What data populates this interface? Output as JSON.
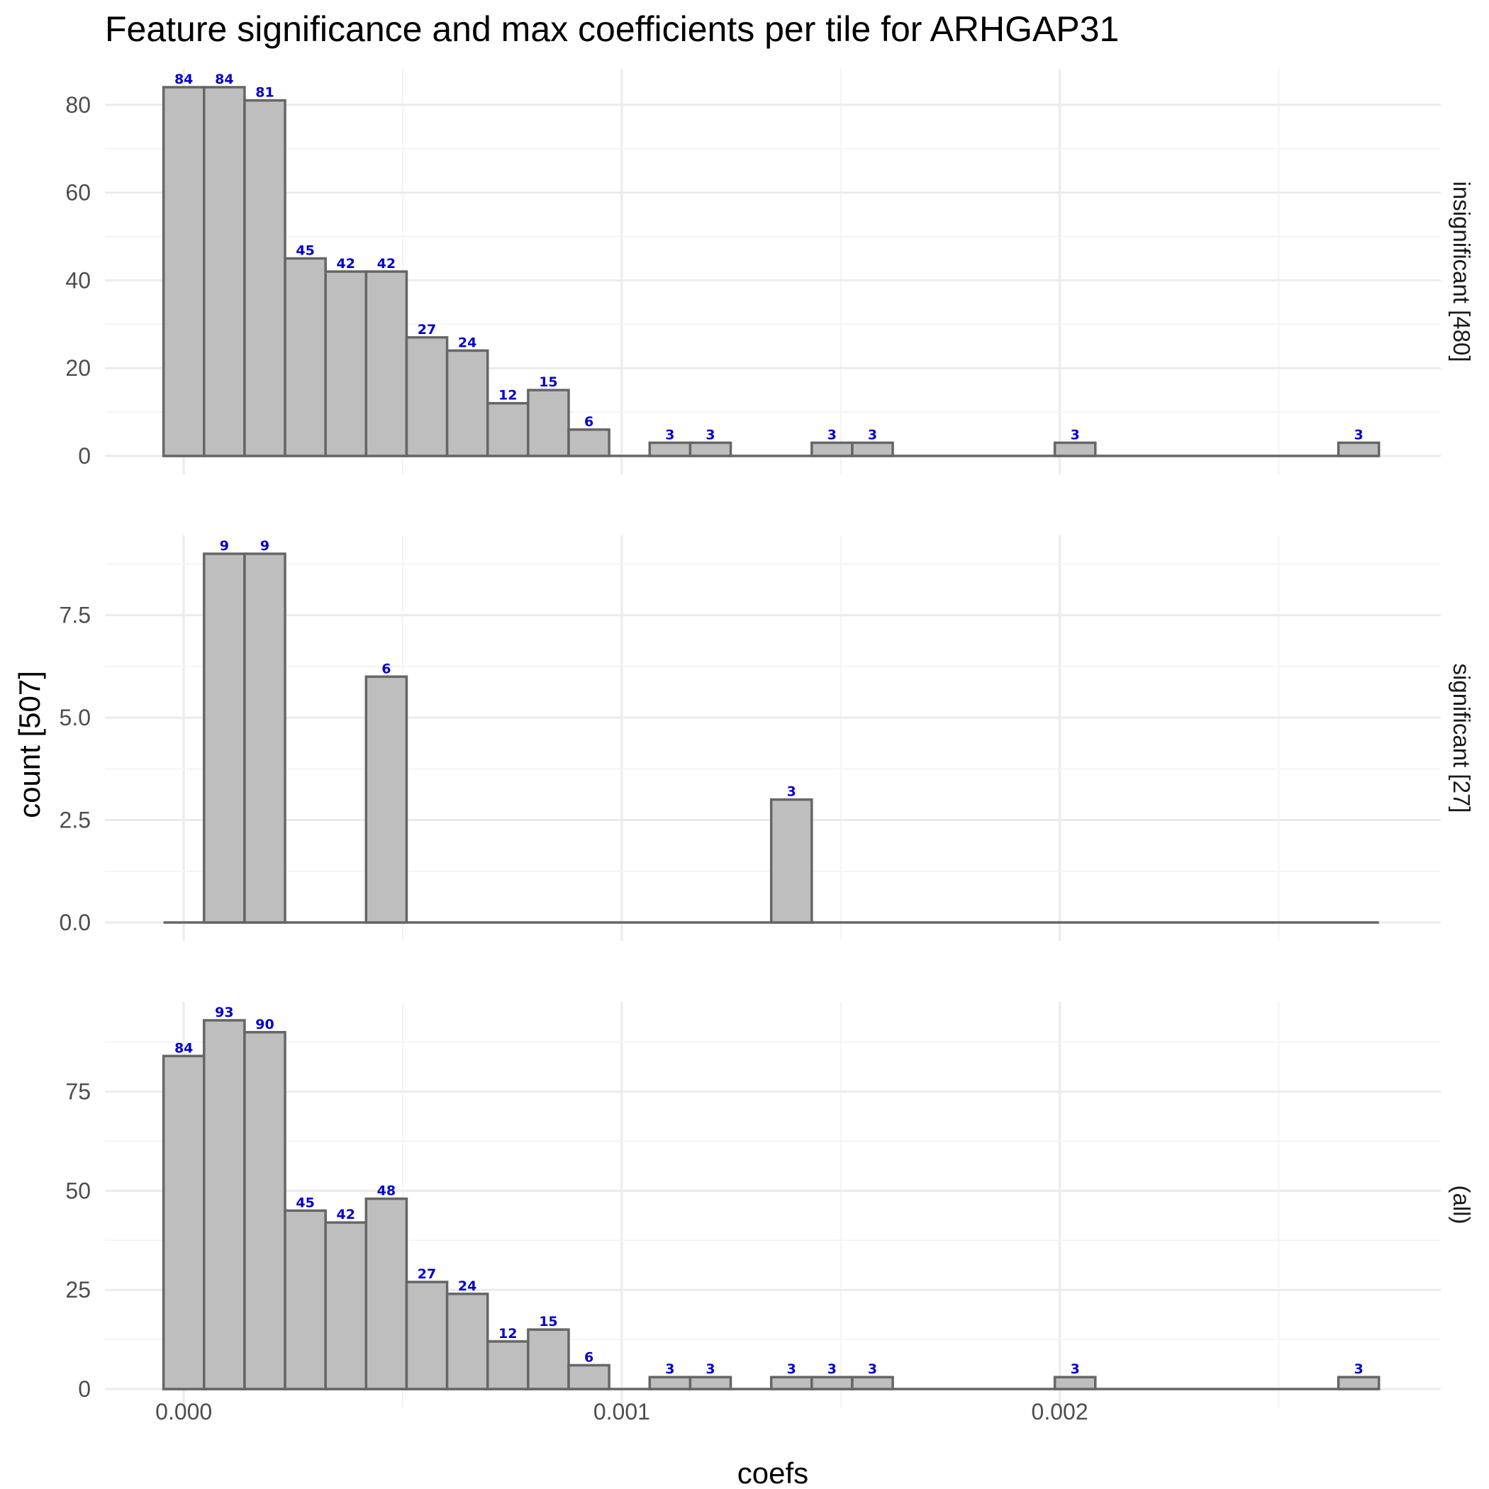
{
  "chart_data": {
    "type": "bar",
    "title": "Feature significance and max coefficients per tile for ARHGAP31",
    "xlabel": "coefs",
    "ylabel": "count [507]",
    "x_ticks": [
      "0.000",
      "0.001",
      "0.002"
    ],
    "xlim": [
      -0.00018,
      0.00287
    ],
    "bin_width": 9.25e-05,
    "bin_centers": [
      0.0,
      9.25e-05,
      0.000185,
      0.0002775,
      0.00037,
      0.0004625,
      0.000555,
      0.0006475,
      0.00074,
      0.0008325,
      0.000925,
      0.0010175,
      0.00111,
      0.0012025,
      0.001295,
      0.0013875,
      0.00148,
      0.0015725,
      0.001665,
      0.0017575,
      0.00185,
      0.0019425,
      0.002035,
      0.0021275,
      0.00222,
      0.0023125,
      0.002405,
      0.0024975,
      0.00259,
      0.0026825
    ],
    "grid": true,
    "panels": [
      {
        "label": "insignificant [480]",
        "ylim": [
          -4.2,
          88.2
        ],
        "y_ticks": [
          0,
          20,
          40,
          60,
          80
        ],
        "y_tick_labels": [
          "0",
          "20",
          "40",
          "60",
          "80"
        ],
        "values": [
          84,
          84,
          81,
          45,
          42,
          42,
          27,
          24,
          12,
          15,
          6,
          0,
          3,
          3,
          0,
          0,
          3,
          3,
          0,
          0,
          0,
          0,
          3,
          0,
          0,
          0,
          0,
          0,
          0,
          3
        ]
      },
      {
        "label": "significant [27]",
        "ylim": [
          -0.45,
          9.45
        ],
        "y_ticks": [
          0,
          2.5,
          5,
          7.5
        ],
        "y_tick_labels": [
          "0.0",
          "2.5",
          "5.0",
          "7.5"
        ],
        "values": [
          0,
          9,
          9,
          0,
          0,
          6,
          0,
          0,
          0,
          0,
          0,
          0,
          0,
          0,
          0,
          3,
          0,
          0,
          0,
          0,
          0,
          0,
          0,
          0,
          0,
          0,
          0,
          0,
          0,
          0
        ]
      },
      {
        "label": "(all)",
        "ylim": [
          -4.65,
          97.65
        ],
        "y_ticks": [
          0,
          25,
          50,
          75
        ],
        "y_tick_labels": [
          "0",
          "25",
          "50",
          "75"
        ],
        "values": [
          84,
          93,
          90,
          45,
          42,
          48,
          27,
          24,
          12,
          15,
          6,
          0,
          3,
          3,
          0,
          3,
          3,
          3,
          0,
          0,
          0,
          0,
          3,
          0,
          0,
          0,
          0,
          0,
          0,
          3
        ]
      }
    ]
  }
}
